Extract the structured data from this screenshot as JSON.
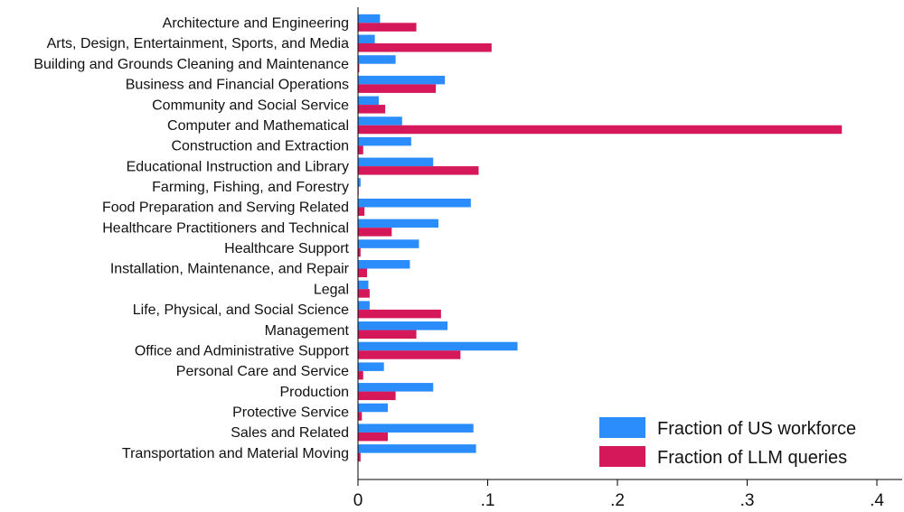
{
  "chart_data": {
    "type": "bar",
    "orientation": "horizontal",
    "categories": [
      "Architecture and Engineering",
      "Arts, Design, Entertainment, Sports, and Media",
      "Building and Grounds Cleaning and Maintenance",
      "Business and Financial Operations",
      "Community and Social Service",
      "Computer and Mathematical",
      "Construction and Extraction",
      "Educational Instruction and Library",
      "Farming, Fishing, and Forestry",
      "Food Preparation and Serving Related",
      "Healthcare Practitioners and Technical",
      "Healthcare Support",
      "Installation, Maintenance, and Repair",
      "Legal",
      "Life, Physical, and Social Science",
      "Management",
      "Office and Administrative Support",
      "Personal Care and Service",
      "Production",
      "Protective Service",
      "Sales and Related",
      "Transportation and Material Moving"
    ],
    "series": [
      {
        "name": "Fraction of US workforce",
        "color": "#2b8cfb",
        "values": [
          0.017,
          0.013,
          0.029,
          0.067,
          0.016,
          0.034,
          0.041,
          0.058,
          0.002,
          0.087,
          0.062,
          0.047,
          0.04,
          0.008,
          0.009,
          0.069,
          0.123,
          0.02,
          0.058,
          0.023,
          0.089,
          0.091
        ]
      },
      {
        "name": "Fraction of LLM queries",
        "color": "#d4185a",
        "values": [
          0.045,
          0.103,
          0.001,
          0.06,
          0.021,
          0.373,
          0.004,
          0.093,
          0.0005,
          0.005,
          0.026,
          0.002,
          0.007,
          0.009,
          0.064,
          0.045,
          0.079,
          0.004,
          0.029,
          0.003,
          0.023,
          0.002
        ]
      }
    ],
    "xlim": [
      0,
      0.4
    ],
    "xticks": [
      0,
      0.1,
      0.2,
      0.3,
      0.4
    ],
    "xtick_labels": [
      "0",
      ".1",
      ".2",
      ".3",
      ".4"
    ],
    "title": "",
    "xlabel": "",
    "ylabel": "",
    "grid": false,
    "legend_position": "bottom-right"
  }
}
